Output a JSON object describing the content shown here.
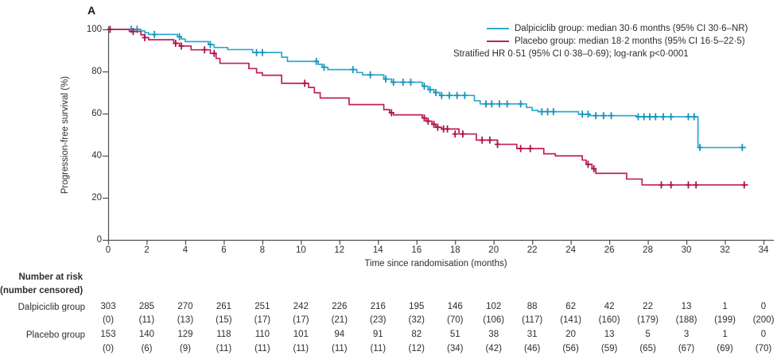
{
  "panel_label": "A",
  "colors": {
    "dalpiciclib": "#2ca9cc",
    "dalpiciclib_censor": "#1694bd",
    "placebo": "#c31e5b",
    "placebo_censor": "#a8124a",
    "axis": "#4f4f4f",
    "text": "#2e2e2e"
  },
  "chart_data": {
    "type": "line",
    "subtype": "kaplan-meier-step",
    "xlabel": "Time since randomisation (months)",
    "ylabel": "Progression-free survival (%)",
    "xlim": [
      0,
      34
    ],
    "ylim": [
      0,
      100
    ],
    "x_ticks": [
      0,
      2,
      4,
      6,
      8,
      10,
      12,
      14,
      16,
      18,
      20,
      22,
      24,
      26,
      28,
      30,
      32,
      34
    ],
    "y_ticks": [
      0,
      20,
      40,
      60,
      80,
      100
    ],
    "legend": {
      "entries": [
        {
          "series": "dalpiciclib",
          "label": "Dalpiciclib group: median 30·6 months (95% CI 30·6–NR)"
        },
        {
          "series": "placebo",
          "label": "Placebo group: median 18·2 months (95% CI 16·5–22·5)"
        }
      ],
      "note": "Stratified HR 0·51 (95% CI 0·38–0·69); log-rank p<0·0001"
    },
    "series": [
      {
        "name": "Dalpiciclib group",
        "color_key": "dalpiciclib",
        "censor_color_key": "dalpiciclib_censor",
        "median_months": "30·6",
        "end_time": 33.1,
        "steps": [
          [
            0,
            100
          ],
          [
            1.7,
            99.3
          ],
          [
            1.9,
            98.4
          ],
          [
            2.1,
            97.6
          ],
          [
            3.6,
            96.5
          ],
          [
            3.8,
            95.4
          ],
          [
            4,
            94.2
          ],
          [
            5.2,
            92.8
          ],
          [
            5.5,
            91.4
          ],
          [
            6.2,
            90.4
          ],
          [
            7.5,
            89
          ],
          [
            9,
            86.8
          ],
          [
            9.3,
            84.8
          ],
          [
            10.9,
            83.4
          ],
          [
            11.1,
            82
          ],
          [
            11.4,
            80.9
          ],
          [
            12.9,
            79.5
          ],
          [
            13.2,
            78.4
          ],
          [
            14.3,
            76.4
          ],
          [
            14.7,
            74.9
          ],
          [
            16.3,
            73
          ],
          [
            16.6,
            71.4
          ],
          [
            16.9,
            70
          ],
          [
            17.2,
            68.6
          ],
          [
            19,
            66.1
          ],
          [
            19.3,
            64.6
          ],
          [
            21.7,
            62.9
          ],
          [
            22,
            61.5
          ],
          [
            22.3,
            60.9
          ],
          [
            24.4,
            59.7
          ],
          [
            25,
            59
          ],
          [
            27.4,
            58.5
          ],
          [
            30.6,
            43.9
          ]
        ],
        "censor_marks": [
          [
            1.2,
            100
          ],
          [
            1.5,
            100
          ],
          [
            2.4,
            97.6
          ],
          [
            3.7,
            96.5
          ],
          [
            5.3,
            92.8
          ],
          [
            7.7,
            89
          ],
          [
            8,
            89
          ],
          [
            10.8,
            84.8
          ],
          [
            11.2,
            82
          ],
          [
            12.7,
            80.9
          ],
          [
            13.6,
            78.4
          ],
          [
            14.4,
            76.4
          ],
          [
            14.8,
            74.9
          ],
          [
            15.3,
            74.9
          ],
          [
            15.7,
            74.9
          ],
          [
            16.4,
            73
          ],
          [
            16.7,
            71.4
          ],
          [
            17,
            70
          ],
          [
            17.3,
            68.6
          ],
          [
            17.7,
            68.6
          ],
          [
            18.1,
            68.6
          ],
          [
            18.5,
            68.6
          ],
          [
            19.6,
            64.6
          ],
          [
            19.9,
            64.6
          ],
          [
            20.3,
            64.6
          ],
          [
            20.7,
            64.6
          ],
          [
            21.4,
            64.6
          ],
          [
            22.5,
            60.9
          ],
          [
            22.8,
            60.9
          ],
          [
            23.1,
            60.9
          ],
          [
            24.6,
            59.7
          ],
          [
            24.9,
            59.7
          ],
          [
            25.3,
            59
          ],
          [
            25.7,
            59
          ],
          [
            26.1,
            59
          ],
          [
            27.5,
            58.5
          ],
          [
            27.8,
            58.5
          ],
          [
            28.1,
            58.5
          ],
          [
            28.4,
            58.5
          ],
          [
            28.8,
            58.5
          ],
          [
            29.2,
            58.5
          ],
          [
            30.1,
            58.5
          ],
          [
            30.4,
            58.5
          ],
          [
            30.7,
            43.9
          ],
          [
            32.9,
            43.9
          ]
        ]
      },
      {
        "name": "Placebo group",
        "color_key": "placebo",
        "censor_color_key": "placebo_censor",
        "median_months": "18·2",
        "end_time": 33.2,
        "steps": [
          [
            0,
            100
          ],
          [
            1.1,
            99
          ],
          [
            1.7,
            97.4
          ],
          [
            1.9,
            96.1
          ],
          [
            2.1,
            95.1
          ],
          [
            3.4,
            93.4
          ],
          [
            3.7,
            92.1
          ],
          [
            4.3,
            90.3
          ],
          [
            5.3,
            88.6
          ],
          [
            5.6,
            86.2
          ],
          [
            5.8,
            83.9
          ],
          [
            7.3,
            81.4
          ],
          [
            7.7,
            79.4
          ],
          [
            8,
            78.2
          ],
          [
            9,
            74.4
          ],
          [
            10.4,
            72.4
          ],
          [
            10.7,
            69.9
          ],
          [
            11,
            67.4
          ],
          [
            12.5,
            64.3
          ],
          [
            14.3,
            61.9
          ],
          [
            14.6,
            60.4
          ],
          [
            14.8,
            59.4
          ],
          [
            16.3,
            57.9
          ],
          [
            16.5,
            56.4
          ],
          [
            16.8,
            54.9
          ],
          [
            17,
            53.5
          ],
          [
            17.3,
            52.7
          ],
          [
            18.2,
            50.3
          ],
          [
            19.1,
            47.4
          ],
          [
            20.2,
            45.4
          ],
          [
            21.2,
            43.4
          ],
          [
            22.6,
            40.9
          ],
          [
            23.2,
            39.9
          ],
          [
            24.6,
            37.9
          ],
          [
            24.8,
            35.9
          ],
          [
            25.1,
            33.8
          ],
          [
            25.3,
            31.6
          ],
          [
            26.9,
            28.9
          ],
          [
            27.7,
            26.1
          ]
        ],
        "censor_marks": [
          [
            0.1,
            100
          ],
          [
            1.3,
            99
          ],
          [
            1.9,
            96.1
          ],
          [
            3.5,
            93.4
          ],
          [
            3.8,
            92.1
          ],
          [
            5,
            90.3
          ],
          [
            5.5,
            88.6
          ],
          [
            10.2,
            74.4
          ],
          [
            14.7,
            60.4
          ],
          [
            16.4,
            57.9
          ],
          [
            16.6,
            56.4
          ],
          [
            16.9,
            54.9
          ],
          [
            17.1,
            53.5
          ],
          [
            17.4,
            52.7
          ],
          [
            17.6,
            52.7
          ],
          [
            18,
            50.3
          ],
          [
            18.4,
            50.3
          ],
          [
            19.4,
            47.4
          ],
          [
            19.8,
            47.4
          ],
          [
            20.2,
            45.4
          ],
          [
            21.4,
            43.4
          ],
          [
            21.9,
            43.4
          ],
          [
            24.9,
            35.9
          ],
          [
            25.2,
            33.8
          ],
          [
            28.7,
            26.1
          ],
          [
            29.2,
            26.1
          ],
          [
            30.1,
            26.1
          ],
          [
            30.5,
            26.1
          ],
          [
            33,
            26.1
          ]
        ]
      }
    ]
  },
  "risk_table": {
    "header_line1": "Number at risk",
    "header_line2": "(number censored)",
    "time_points": [
      0,
      2,
      4,
      6,
      8,
      10,
      12,
      14,
      16,
      18,
      20,
      22,
      24,
      26,
      28,
      30,
      32,
      34
    ],
    "rows": [
      {
        "label": "Dalpiciclib group",
        "at_risk": [
          "303",
          "285",
          "270",
          "261",
          "251",
          "242",
          "226",
          "216",
          "195",
          "146",
          "102",
          "88",
          "62",
          "42",
          "22",
          "13",
          "1",
          "0"
        ],
        "censored": [
          "(0)",
          "(11)",
          "(13)",
          "(15)",
          "(17)",
          "(17)",
          "(21)",
          "(23)",
          "(32)",
          "(70)",
          "(106)",
          "(117)",
          "(141)",
          "(160)",
          "(179)",
          "(188)",
          "(199)",
          "(200)"
        ]
      },
      {
        "label": "Placebo group",
        "at_risk": [
          "153",
          "140",
          "129",
          "118",
          "110",
          "101",
          "94",
          "91",
          "82",
          "51",
          "38",
          "31",
          "20",
          "13",
          "5",
          "3",
          "1",
          "0"
        ],
        "censored": [
          "(0)",
          "(6)",
          "(9)",
          "(11)",
          "(11)",
          "(11)",
          "(11)",
          "(11)",
          "(12)",
          "(34)",
          "(42)",
          "(46)",
          "(56)",
          "(59)",
          "(65)",
          "(67)",
          "(69)",
          "(70)"
        ]
      }
    ]
  }
}
